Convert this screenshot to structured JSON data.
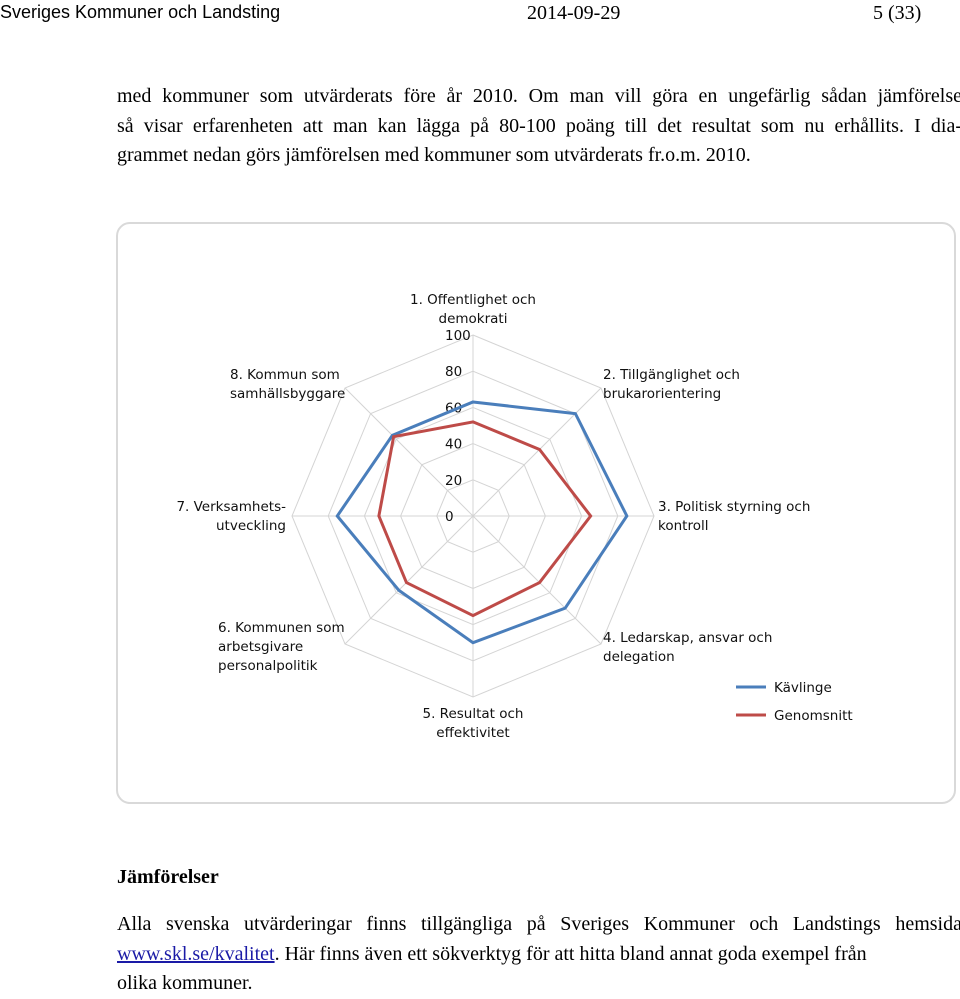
{
  "header": {
    "org": "Sveriges Kommuner och Landsting",
    "date": "2014-09-29",
    "page": "5 (33)"
  },
  "intro": {
    "lines": [
      "med kommuner som utvärderats före år 2010. Om man vill göra en ungefärlig sådan jämförelse",
      "så visar erfarenheten att man kan lägga på 80-100 poäng till det resultat som nu erhållits. I dia-",
      "grammet nedan görs jämförelsen med kommuner som utvärderats fr.o.m. 2010."
    ]
  },
  "chart_data": {
    "type": "radar",
    "rlim": [
      0,
      100
    ],
    "ticks": [
      "0",
      "20",
      "40",
      "60",
      "80",
      "100"
    ],
    "tick_values": [
      0,
      20,
      40,
      60,
      80,
      100
    ],
    "axes": [
      {
        "lines": [
          "1. Offentlighet och",
          "demokrati"
        ]
      },
      {
        "lines": [
          "2. Tillgänglighet och",
          "brukarorientering"
        ]
      },
      {
        "lines": [
          "3. Politisk styrning och",
          "kontroll"
        ]
      },
      {
        "lines": [
          "4. Ledarskap, ansvar och",
          "delegation"
        ]
      },
      {
        "lines": [
          "5. Resultat och",
          "effektivitet"
        ]
      },
      {
        "lines": [
          "6. Kommunen som",
          "arbetsgivare",
          "personalpolitik"
        ]
      },
      {
        "lines": [
          "7. Verksamhets-",
          "utveckling"
        ]
      },
      {
        "lines": [
          "8. Kommun som",
          "samhällsbyggare"
        ]
      }
    ],
    "series": [
      {
        "name": "Kävlinge",
        "color": "#4a7ebb",
        "values": [
          63,
          80,
          85,
          72,
          70,
          58,
          75,
          63
        ]
      },
      {
        "name": "Genomsnitt",
        "color": "#be4b48",
        "values": [
          52,
          52,
          65,
          52,
          55,
          52,
          52,
          62
        ]
      }
    ],
    "grid": true,
    "legend_position": "bottom-right"
  },
  "section": {
    "title": "Jämförelser",
    "line1": "Alla svenska utvärderingar finns tillgängliga på Sveriges Kommuner och Landstings hemsida",
    "link": "www.skl.se/kvalitet",
    "line2_rest": ". Här finns även ett sökverktyg för att hitta bland annat goda exempel från",
    "line3": "olika kommuner."
  }
}
